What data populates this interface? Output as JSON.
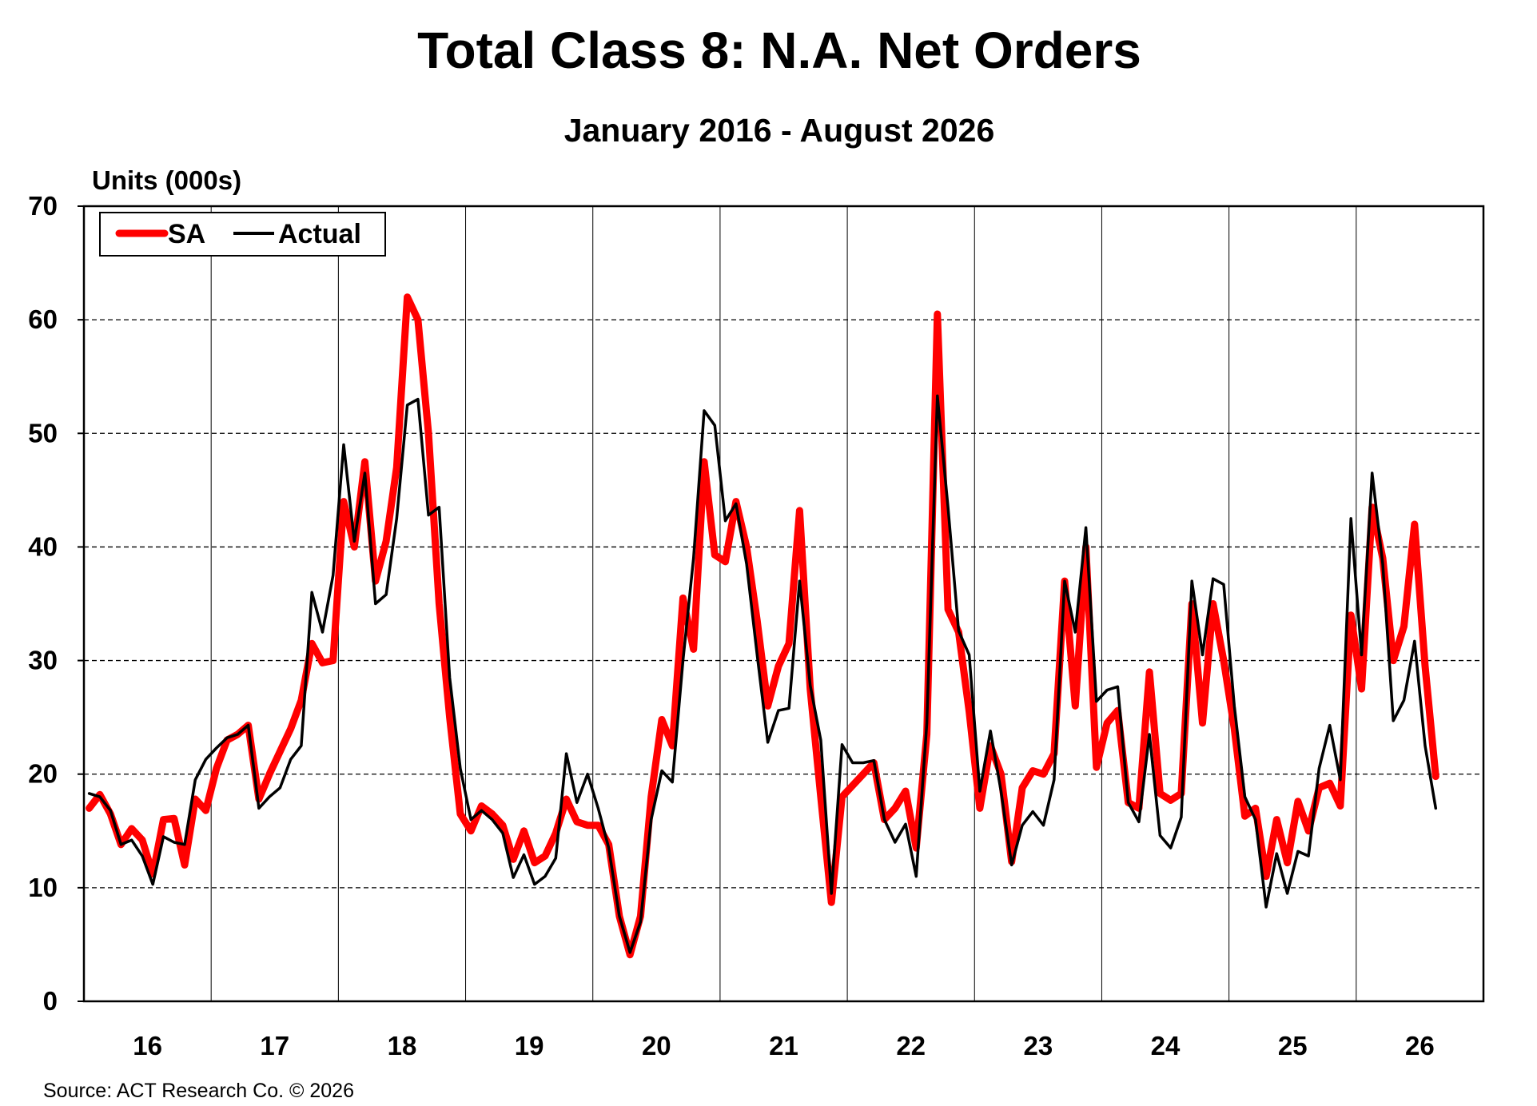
{
  "chart_data": {
    "type": "line",
    "title": "Total Class 8: N.A. Net Orders",
    "subtitle": "January 2016 - August 2026",
    "ylabel": "Units (000s)",
    "ylim": [
      0,
      70
    ],
    "yticks": [
      0,
      10,
      20,
      30,
      40,
      50,
      60,
      70
    ],
    "xlim": [
      "2016-01",
      "2026-12"
    ],
    "x_tick_labels": [
      "16",
      "17",
      "18",
      "19",
      "20",
      "21",
      "22",
      "23",
      "24",
      "25",
      "26"
    ],
    "grid": "horizontal dashed, vertical year separators",
    "legend": "top-left",
    "source": "Source: ACT Research Co. © 2026",
    "x": [
      "2016-01",
      "2016-02",
      "2016-03",
      "2016-04",
      "2016-05",
      "2016-06",
      "2016-07",
      "2016-08",
      "2016-09",
      "2016-10",
      "2016-11",
      "2016-12",
      "2017-01",
      "2017-02",
      "2017-03",
      "2017-04",
      "2017-05",
      "2017-06",
      "2017-07",
      "2017-08",
      "2017-09",
      "2017-10",
      "2017-11",
      "2017-12",
      "2018-01",
      "2018-02",
      "2018-03",
      "2018-04",
      "2018-05",
      "2018-06",
      "2018-07",
      "2018-08",
      "2018-09",
      "2018-10",
      "2018-11",
      "2018-12",
      "2019-01",
      "2019-02",
      "2019-03",
      "2019-04",
      "2019-05",
      "2019-06",
      "2019-07",
      "2019-08",
      "2019-09",
      "2019-10",
      "2019-11",
      "2019-12",
      "2020-01",
      "2020-02",
      "2020-03",
      "2020-04",
      "2020-05",
      "2020-06",
      "2020-07",
      "2020-08",
      "2020-09",
      "2020-10",
      "2020-11",
      "2020-12",
      "2021-01",
      "2021-02",
      "2021-03",
      "2021-04",
      "2021-05",
      "2021-06",
      "2021-07",
      "2021-08",
      "2021-09",
      "2021-10",
      "2021-11",
      "2021-12",
      "2022-01",
      "2022-02",
      "2022-03",
      "2022-04",
      "2022-05",
      "2022-06",
      "2022-07",
      "2022-08",
      "2022-09",
      "2022-10",
      "2022-11",
      "2022-12",
      "2023-01",
      "2023-02",
      "2023-03",
      "2023-04",
      "2023-05",
      "2023-06",
      "2023-07",
      "2023-08",
      "2023-09",
      "2023-10",
      "2023-11",
      "2023-12",
      "2024-01",
      "2024-02",
      "2024-03",
      "2024-04",
      "2024-05",
      "2024-06",
      "2024-07",
      "2024-08",
      "2024-09",
      "2024-10",
      "2024-11",
      "2024-12",
      "2025-01",
      "2025-02",
      "2025-03",
      "2025-04",
      "2025-05",
      "2025-06",
      "2025-07",
      "2025-08",
      "2025-09",
      "2025-10",
      "2025-11",
      "2025-12",
      "2026-01",
      "2026-02",
      "2026-03",
      "2026-04",
      "2026-05",
      "2026-06",
      "2026-07",
      "2026-08"
    ],
    "series": [
      {
        "name": "SA",
        "color": "#ff0000",
        "values": [
          17.0,
          18.2,
          16.5,
          13.8,
          15.2,
          14.2,
          11.2,
          16.0,
          16.1,
          12.0,
          17.8,
          16.8,
          20.5,
          23.0,
          23.5,
          24.3,
          17.8,
          20.0,
          22.0,
          24.0,
          26.5,
          31.5,
          29.8,
          30.0,
          44.0,
          40.0,
          47.5,
          37.0,
          40.5,
          47.0,
          62.0,
          60.0,
          50.0,
          35.0,
          25.0,
          16.5,
          15.0,
          17.2,
          16.5,
          15.5,
          12.5,
          15.0,
          12.2,
          12.8,
          14.8,
          17.8,
          15.8,
          15.5,
          15.5,
          13.8,
          7.5,
          4.1,
          7.5,
          18.0,
          24.8,
          22.5,
          35.5,
          31.0,
          47.5,
          39.3,
          38.7,
          44.0,
          40.0,
          33.5,
          26.0,
          29.5,
          31.5,
          43.2,
          27.5,
          18.0,
          8.7,
          18.0,
          19.0,
          20.0,
          21.0,
          16.0,
          17.0,
          18.5,
          13.5,
          23.5,
          60.5,
          34.5,
          32.5,
          25.5,
          17.0,
          22.5,
          20.0,
          12.3,
          18.8,
          20.3,
          20.0,
          21.8,
          37.0,
          26.0,
          40.0,
          20.6,
          24.5,
          25.6,
          17.5,
          17.0,
          29.0,
          18.3,
          17.7,
          18.3,
          35.0,
          24.5,
          35.0,
          30.0,
          24.0,
          16.3,
          17.0,
          11.0,
          16.0,
          12.2,
          17.6,
          15.0,
          18.8,
          19.2,
          17.2,
          34.0,
          27.5,
          43.5,
          39.0,
          30.0,
          33.0,
          42.0,
          29.5,
          19.8
        ]
      },
      {
        "name": "Actual",
        "color": "#000000",
        "values": [
          18.3,
          18.0,
          16.8,
          13.8,
          14.2,
          12.8,
          10.3,
          14.5,
          14.0,
          13.8,
          19.5,
          21.3,
          22.3,
          23.2,
          23.5,
          24.3,
          17.0,
          18.0,
          18.8,
          21.3,
          22.5,
          36.0,
          32.5,
          37.5,
          49.0,
          40.5,
          46.5,
          35.0,
          35.8,
          42.5,
          52.5,
          53.0,
          42.8,
          43.5,
          28.5,
          20.5,
          16.0,
          16.8,
          16.0,
          14.8,
          10.9,
          12.9,
          10.3,
          11.0,
          12.6,
          21.8,
          17.5,
          20.0,
          17.0,
          13.5,
          7.5,
          4.3,
          7.0,
          16.0,
          20.3,
          19.3,
          30.0,
          39.0,
          52.0,
          50.7,
          42.3,
          43.8,
          38.5,
          30.5,
          22.8,
          25.6,
          25.8,
          37.0,
          27.8,
          23.0,
          9.5,
          22.6,
          21.0,
          21.0,
          21.2,
          16.0,
          14.0,
          15.6,
          11.0,
          24.5,
          53.3,
          43.5,
          32.6,
          30.5,
          18.5,
          23.8,
          18.5,
          12.0,
          15.5,
          16.7,
          15.5,
          19.5,
          37.0,
          32.5,
          41.7,
          26.4,
          27.4,
          27.7,
          17.5,
          15.8,
          23.5,
          14.6,
          13.5,
          16.2,
          37.0,
          30.5,
          37.2,
          36.7,
          26.0,
          18.0,
          16.0,
          8.3,
          13.0,
          9.5,
          13.2,
          12.8,
          20.5,
          24.3,
          19.5,
          42.5,
          30.5,
          46.5,
          38.5,
          24.7,
          26.5,
          31.7,
          22.5,
          17.0
        ]
      }
    ]
  }
}
